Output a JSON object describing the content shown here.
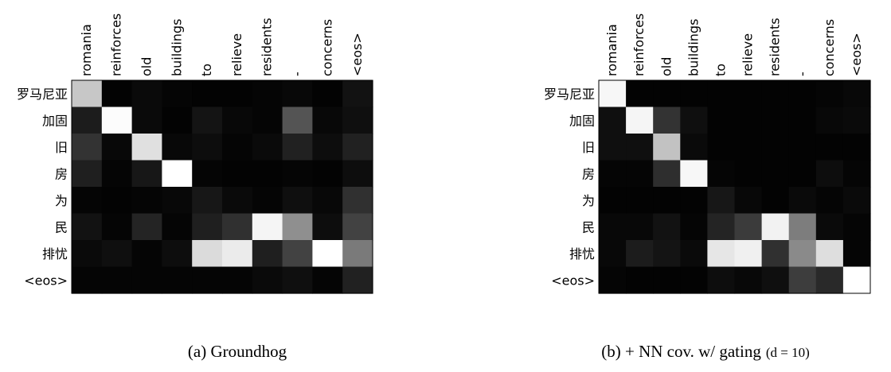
{
  "chart_data": [
    {
      "type": "heatmap",
      "caption": "(a) Groundhog",
      "x_labels": [
        "romania",
        "reinforces",
        "old",
        "buildings",
        "to",
        "relieve",
        "residents",
        "-",
        "concerns",
        "<eos>"
      ],
      "y_labels": [
        "罗马尼亚",
        "加固",
        "旧",
        "房",
        "为",
        "民",
        "排忧",
        "<eos>"
      ],
      "value_range": [
        0,
        1
      ],
      "colormap": "gray",
      "values": [
        [
          0.78,
          0.01,
          0.04,
          0.02,
          0.01,
          0.01,
          0.02,
          0.03,
          0.01,
          0.07
        ],
        [
          0.11,
          0.99,
          0.04,
          0.01,
          0.08,
          0.03,
          0.02,
          0.33,
          0.03,
          0.06
        ],
        [
          0.2,
          0.03,
          0.88,
          0.03,
          0.05,
          0.02,
          0.04,
          0.13,
          0.05,
          0.13
        ],
        [
          0.12,
          0.02,
          0.09,
          1.0,
          0.02,
          0.01,
          0.01,
          0.02,
          0.01,
          0.05
        ],
        [
          0.02,
          0.01,
          0.02,
          0.03,
          0.09,
          0.04,
          0.02,
          0.06,
          0.03,
          0.19
        ],
        [
          0.07,
          0.02,
          0.14,
          0.02,
          0.12,
          0.19,
          0.96,
          0.56,
          0.05,
          0.26
        ],
        [
          0.04,
          0.06,
          0.02,
          0.05,
          0.86,
          0.92,
          0.12,
          0.26,
          1.0,
          0.48
        ],
        [
          0.02,
          0.02,
          0.02,
          0.02,
          0.02,
          0.02,
          0.04,
          0.06,
          0.02,
          0.13
        ]
      ]
    },
    {
      "type": "heatmap",
      "caption_prefix": "(b) + NN cov. w/ gating",
      "caption_math": "(d = 10)",
      "x_labels": [
        "romania",
        "reinforces",
        "old",
        "buildings",
        "to",
        "relieve",
        "residents",
        "-",
        "concerns",
        "<eos>"
      ],
      "y_labels": [
        "罗马尼亚",
        "加固",
        "旧",
        "房",
        "为",
        "民",
        "排忧",
        "<eos>"
      ],
      "value_range": [
        0,
        1
      ],
      "colormap": "gray",
      "values": [
        [
          0.97,
          0.01,
          0.01,
          0.01,
          0.01,
          0.01,
          0.01,
          0.01,
          0.02,
          0.03
        ],
        [
          0.06,
          0.96,
          0.2,
          0.06,
          0.01,
          0.01,
          0.01,
          0.01,
          0.03,
          0.04
        ],
        [
          0.06,
          0.06,
          0.76,
          0.04,
          0.01,
          0.01,
          0.01,
          0.01,
          0.01,
          0.01
        ],
        [
          0.02,
          0.02,
          0.18,
          0.97,
          0.02,
          0.01,
          0.01,
          0.01,
          0.05,
          0.02
        ],
        [
          0.01,
          0.01,
          0.01,
          0.01,
          0.09,
          0.03,
          0.01,
          0.04,
          0.02,
          0.04
        ],
        [
          0.03,
          0.03,
          0.07,
          0.02,
          0.14,
          0.23,
          0.95,
          0.49,
          0.04,
          0.02
        ],
        [
          0.03,
          0.11,
          0.08,
          0.04,
          0.9,
          0.94,
          0.19,
          0.54,
          0.87,
          0.02
        ],
        [
          0.02,
          0.01,
          0.01,
          0.01,
          0.05,
          0.03,
          0.06,
          0.24,
          0.16,
          1.0
        ]
      ]
    }
  ]
}
